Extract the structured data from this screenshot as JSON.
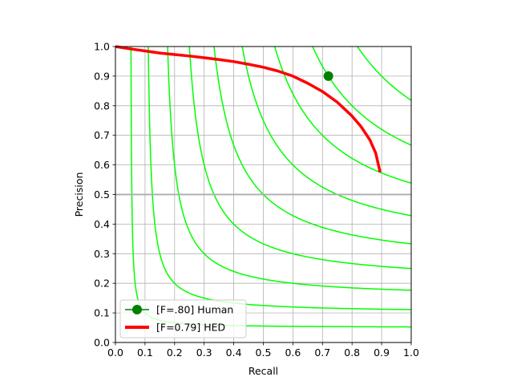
{
  "chart_data": {
    "type": "line",
    "title": "",
    "xlabel": "Recall",
    "ylabel": "Precision",
    "xlim": [
      0.0,
      1.0
    ],
    "ylim": [
      0.0,
      1.0
    ],
    "x_ticks": [
      "0.0",
      "0.1",
      "0.2",
      "0.3",
      "0.4",
      "0.5",
      "0.6",
      "0.7",
      "0.8",
      "0.9",
      "1.0"
    ],
    "y_ticks": [
      "0.0",
      "0.1",
      "0.2",
      "0.3",
      "0.4",
      "0.5",
      "0.6",
      "0.7",
      "0.8",
      "0.9",
      "1.0"
    ],
    "grid": true,
    "legend_position": "lower-left",
    "iso_f_values": [
      0.1,
      0.2,
      0.3,
      0.4,
      0.5,
      0.6,
      0.7,
      0.8,
      0.9
    ],
    "iso_f_color": "#00ff00",
    "reference_line": {
      "y": 0.5,
      "color": "#b0b0b0"
    },
    "series": [
      {
        "name": "[F=.80] Human",
        "kind": "point",
        "color": "#008000",
        "points": [
          {
            "x": 0.72,
            "y": 0.9
          }
        ]
      },
      {
        "name": "[F=0.79] HED",
        "kind": "line",
        "color": "#ff0000",
        "points": [
          {
            "x": 0.0,
            "y": 1.0
          },
          {
            "x": 0.05,
            "y": 0.992
          },
          {
            "x": 0.1,
            "y": 0.985
          },
          {
            "x": 0.15,
            "y": 0.978
          },
          {
            "x": 0.2,
            "y": 0.973
          },
          {
            "x": 0.25,
            "y": 0.968
          },
          {
            "x": 0.3,
            "y": 0.962
          },
          {
            "x": 0.35,
            "y": 0.956
          },
          {
            "x": 0.4,
            "y": 0.949
          },
          {
            "x": 0.45,
            "y": 0.94
          },
          {
            "x": 0.5,
            "y": 0.93
          },
          {
            "x": 0.55,
            "y": 0.917
          },
          {
            "x": 0.6,
            "y": 0.9
          },
          {
            "x": 0.65,
            "y": 0.876
          },
          {
            "x": 0.7,
            "y": 0.848
          },
          {
            "x": 0.75,
            "y": 0.812
          },
          {
            "x": 0.8,
            "y": 0.765
          },
          {
            "x": 0.83,
            "y": 0.73
          },
          {
            "x": 0.86,
            "y": 0.685
          },
          {
            "x": 0.88,
            "y": 0.64
          },
          {
            "x": 0.895,
            "y": 0.575
          }
        ]
      }
    ]
  }
}
